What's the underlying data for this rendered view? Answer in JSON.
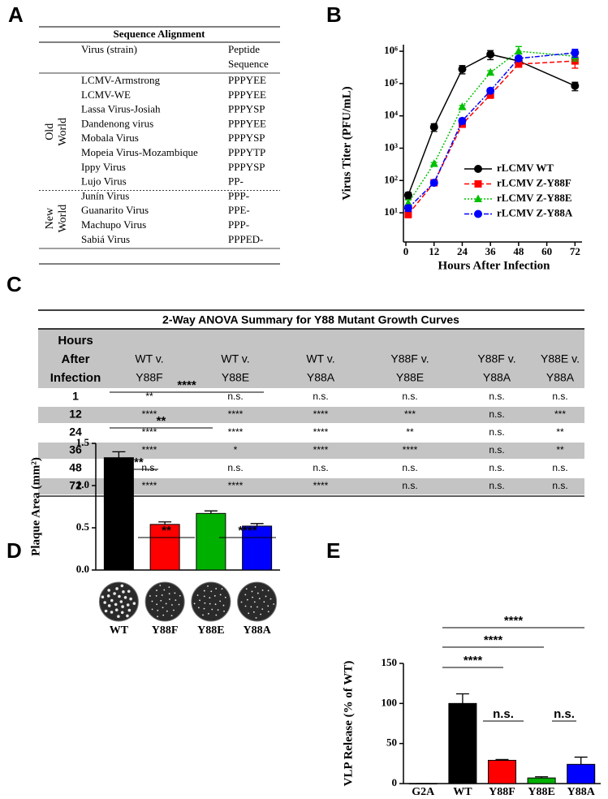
{
  "panel_labels": [
    "A",
    "B",
    "C",
    "D",
    "E"
  ],
  "alignment_table": {
    "title": "Sequence Alignment",
    "virus_header": "Virus (strain)",
    "sequence_header": [
      "Peptide",
      "Sequence"
    ],
    "groups": [
      {
        "label": [
          "Old",
          "World"
        ],
        "rows": [
          [
            "LCMV-Armstrong",
            "PPPYEE"
          ],
          [
            "LCMV-WE",
            "PPPYEE"
          ],
          [
            "Lassa Virus-Josiah",
            "PPPYSP"
          ],
          [
            "Dandenong virus",
            "PPPYEE"
          ],
          [
            "Mobala Virus",
            "PPPYSP"
          ],
          [
            "Mopeia Virus-Mozambique",
            "PPPYTP"
          ],
          [
            "Ippy Virus",
            "PPPYSP"
          ],
          [
            "Lujo Virus",
            "PP-"
          ]
        ]
      },
      {
        "label": [
          "New",
          "World"
        ],
        "rows": [
          [
            "Junín Virus",
            "PPP-"
          ],
          [
            "Guanarito Virus",
            "PPE-"
          ],
          [
            "Machupo Virus",
            "PPP-"
          ],
          [
            "Sabiá Virus",
            "PPPED-"
          ]
        ]
      }
    ]
  },
  "chart_data": [
    {
      "type": "line",
      "xlabel": "Hours After Infection",
      "ylabel": "Virus Titer (PFU/mL)",
      "log_y": true,
      "xlim": [
        0,
        75
      ],
      "xticks": [
        0,
        12,
        24,
        36,
        48,
        60,
        72
      ],
      "ylim": [
        1.25,
        1600000
      ],
      "yticks": [
        {
          "value": 10,
          "label": "10¹"
        },
        {
          "value": 100,
          "label": "10²"
        },
        {
          "value": 1000,
          "label": "10³"
        },
        {
          "value": 10000,
          "label": "10⁴"
        },
        {
          "value": 100000,
          "label": "10⁵"
        },
        {
          "value": 1000000,
          "label": "10⁶"
        }
      ],
      "legend": "lower right",
      "x": [
        1,
        12,
        24,
        36,
        48,
        72
      ],
      "series": [
        {
          "name": "rLCMV WT",
          "color": "#000000",
          "marker": "circle",
          "dash": "solid",
          "values": [
            35,
            4500,
            280000,
            800000,
            500000,
            85000
          ],
          "errors": [
            8,
            1200,
            80000,
            250000,
            150000,
            25000
          ]
        },
        {
          "name": "rLCMV Z-Y88F",
          "color": "#ff0000",
          "marker": "square",
          "dash": "dashed",
          "values": [
            9,
            85,
            5500,
            45000,
            400000,
            500000
          ],
          "errors": [
            2,
            10,
            1000,
            10000,
            80000,
            200000
          ]
        },
        {
          "name": "rLCMV Z-Y88E",
          "color": "#00c000",
          "marker": "triangle",
          "dash": "dotted",
          "values": [
            20,
            330,
            19000,
            220000,
            1000000,
            700000
          ],
          "errors": [
            5,
            30,
            2000,
            30000,
            400000,
            200000
          ]
        },
        {
          "name": "rLCMV Z-Y88A",
          "color": "#0000ff",
          "marker": "circle",
          "dash": "dashdot",
          "values": [
            14,
            85,
            7000,
            60000,
            600000,
            900000
          ],
          "errors": [
            3,
            10,
            1500,
            10000,
            100000,
            250000
          ]
        }
      ]
    },
    {
      "type": "bar",
      "ylabel": "Plaque Area (mm²)",
      "categories": [
        "WT",
        "Y88F",
        "Y88E",
        "Y88A"
      ],
      "values": [
        1.33,
        0.54,
        0.67,
        0.52
      ],
      "errors": [
        0.07,
        0.03,
        0.03,
        0.03
      ],
      "colors": [
        "#000000",
        "#ff0000",
        "#00b000",
        "#0000ff"
      ],
      "ylim": [
        0,
        1.5
      ],
      "yticks": [
        {
          "value": 0,
          "label": "0.0"
        },
        0.5,
        {
          "value": 1,
          "label": "1.0"
        },
        1.5
      ],
      "annotations": [
        "****",
        "**",
        "****",
        "**",
        "****"
      ]
    },
    {
      "type": "bar",
      "ylabel": "VLP Release (% of WT)",
      "categories": [
        "G2A",
        "WT",
        "Y88F",
        "Y88E",
        "Y88A"
      ],
      "values": [
        0,
        100,
        29,
        7,
        24
      ],
      "errors": [
        0,
        12,
        1,
        1.5,
        9
      ],
      "colors": [
        "#000000",
        "#000000",
        "#ff0000",
        "#00b000",
        "#0000ff"
      ],
      "ylim": [
        0,
        150
      ],
      "yticks": [
        0,
        50,
        100,
        150
      ],
      "annotations": [
        "****",
        "****",
        "****",
        "n.s.",
        "n.s."
      ]
    }
  ],
  "anova_table": {
    "title": "2-Way ANOVA Summary for Y88 Mutant Growth Curves",
    "header": [
      [
        "Hours",
        "After",
        "Infection"
      ],
      [
        "WT  v.",
        "Y88F"
      ],
      [
        "WT  v.",
        "Y88E"
      ],
      [
        "WT v.",
        "Y88A"
      ],
      [
        "Y88F v.",
        "Y88E"
      ],
      [
        "Y88F v.",
        "Y88A"
      ],
      [
        "Y88E v.",
        "Y88A"
      ]
    ],
    "rows": [
      [
        1,
        "**",
        "n.s.",
        "n.s.",
        "n.s.",
        "n.s.",
        "n.s."
      ],
      [
        12,
        "****",
        "****",
        "****",
        "***",
        "n.s.",
        "***"
      ],
      [
        24,
        "****",
        "****",
        "****",
        "**",
        "n.s.",
        "**"
      ],
      [
        36,
        "****",
        "*",
        "****",
        "****",
        "n.s.",
        "**"
      ],
      [
        48,
        "n.s.",
        "n.s.",
        "n.s.",
        "n.s.",
        "n.s.",
        "n.s."
      ],
      [
        72,
        "****",
        "****",
        "****",
        "n.s.",
        "n.s.",
        "n.s."
      ]
    ]
  }
}
